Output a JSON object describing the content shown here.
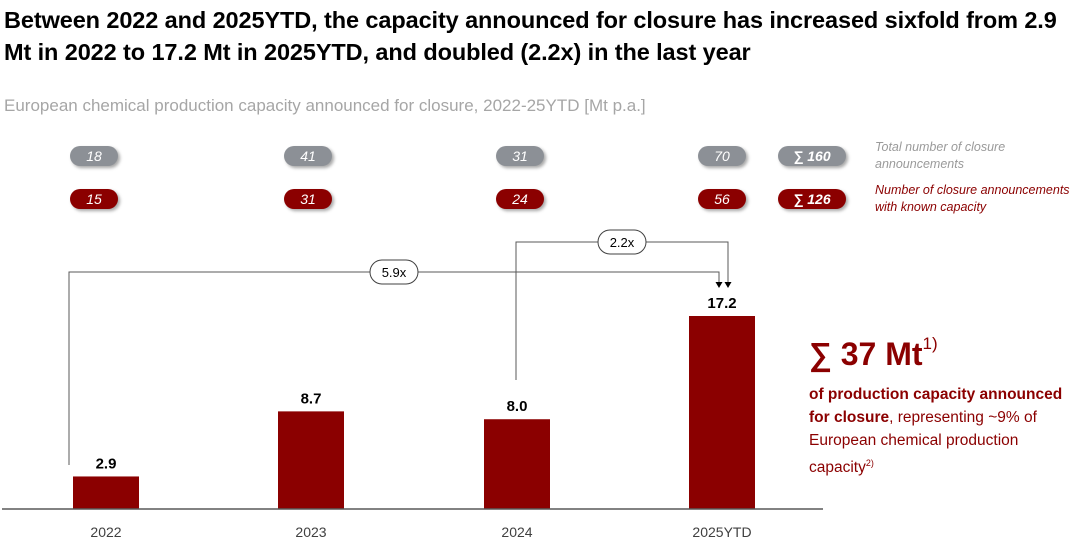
{
  "title": "Between 2022 and 2025YTD, the capacity announced for closure has increased sixfold from 2.9 Mt in 2022 to 17.2 Mt in 2025YTD, and doubled (2.2x) in the last year",
  "subtitle": "European chemical production capacity announced for closure, 2022-25YTD [Mt p.a.]",
  "colors": {
    "bar": "#8b0000",
    "gray_pill": "#8c9096",
    "red_pill": "#8b0000",
    "subtitle": "#a6a6a6"
  },
  "pills": {
    "total_announcements": [
      "18",
      "41",
      "31",
      "70"
    ],
    "total_sum": "∑ 160",
    "total_legend": "Total number of closure announcements",
    "known_capacity": [
      "15",
      "31",
      "24",
      "56"
    ],
    "known_sum": "∑ 126",
    "known_legend": "Number of closure announcements with known capacity"
  },
  "growth": {
    "overall": "5.9x",
    "last_year": "2.2x"
  },
  "callout": {
    "headline": "∑ 37 Mt",
    "headline_note": "1)",
    "bold_text": "of production capacity announced for closure",
    "comma": ",",
    "text": "representing ~9% of European chemical production capacity",
    "note": "2)"
  },
  "chart_data": {
    "type": "bar",
    "title": "European chemical production capacity announced for closure, 2022-25YTD [Mt p.a.]",
    "xlabel": "",
    "ylabel": "Mt p.a.",
    "categories": [
      "2022",
      "2023",
      "2024",
      "2025YTD"
    ],
    "values": [
      2.9,
      8.7,
      8.0,
      17.2
    ],
    "value_labels": [
      "2.9",
      "8.7",
      "8.0",
      "17.2"
    ],
    "ylim": [
      0,
      17.2
    ],
    "grid": false,
    "annotations": [
      {
        "from": "2022",
        "to": "2025YTD",
        "label": "5.9x"
      },
      {
        "from": "2024",
        "to": "2025YTD",
        "label": "2.2x"
      }
    ]
  }
}
